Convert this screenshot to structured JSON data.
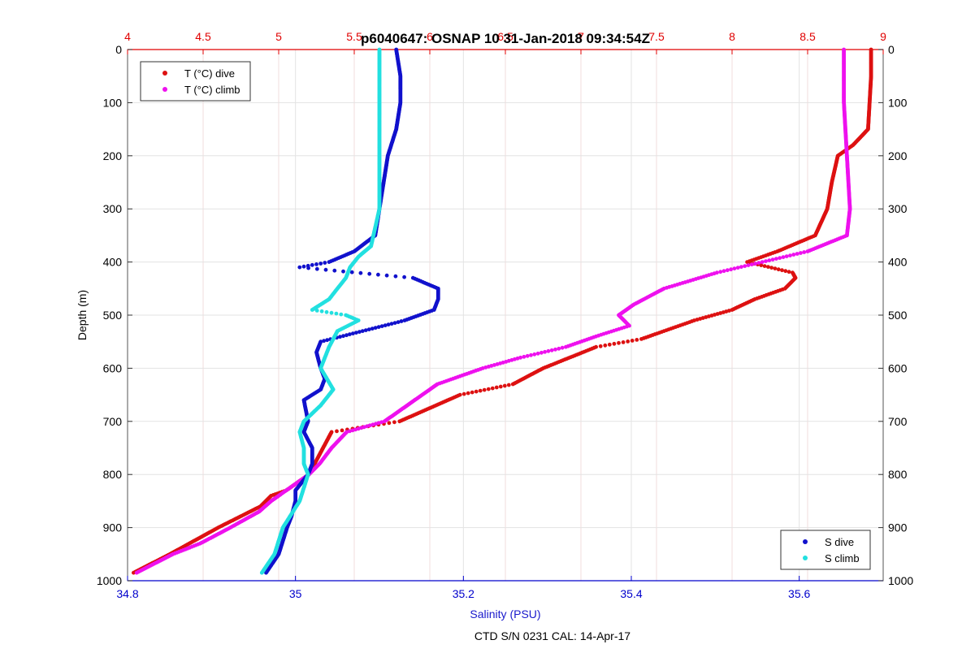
{
  "chart_data": {
    "type": "scatter",
    "title": "p6040647: OSNAP 10 31-Jan-2018 09:34:54Z",
    "xlabel": "Salinity (PSU)",
    "ylabel": "Depth (m)",
    "footer": "CTD S/N 0231  CAL: 14-Apr-17",
    "salinity_axis": {
      "range": [
        34.8,
        35.7
      ],
      "ticks": [
        "34.8",
        "35",
        "35.2",
        "35.4",
        "35.6"
      ],
      "color": "#0000cc"
    },
    "temperature_axis": {
      "range": [
        4,
        9
      ],
      "ticks": [
        "4",
        "4.5",
        "5",
        "5.5",
        "6",
        "6.5",
        "7",
        "7.5",
        "8",
        "8.5",
        "9"
      ],
      "color": "#e00000"
    },
    "depth_axis": {
      "range": [
        0,
        1000
      ],
      "reversed": true,
      "ticks": [
        "0",
        "100",
        "200",
        "300",
        "400",
        "500",
        "600",
        "700",
        "800",
        "900",
        "1000"
      ]
    },
    "grid": true,
    "legends": [
      {
        "placement": "top-left",
        "entries": [
          {
            "label": "T (°C) dive",
            "color": "#dd1111"
          },
          {
            "label": "T (°C) climb",
            "color": "#ee11ee"
          }
        ]
      },
      {
        "placement": "bottom-right",
        "entries": [
          {
            "label": "S dive",
            "color": "#1111cc"
          },
          {
            "label": "S climb",
            "color": "#22e0e0"
          }
        ]
      }
    ],
    "series": [
      {
        "name": "T (°C) dive",
        "axis": "temperature",
        "color": "#dd1111",
        "depth": [
          0,
          50,
          100,
          150,
          180,
          200,
          250,
          300,
          350,
          380,
          400,
          420,
          430,
          450,
          470,
          490,
          510,
          530,
          545,
          560,
          600,
          630,
          650,
          700,
          720,
          800,
          830,
          840,
          860,
          900,
          950,
          985
        ],
        "values": [
          8.92,
          8.92,
          8.91,
          8.9,
          8.8,
          8.7,
          8.66,
          8.63,
          8.55,
          8.3,
          8.1,
          8.4,
          8.42,
          8.35,
          8.15,
          8.0,
          7.75,
          7.55,
          7.4,
          7.1,
          6.75,
          6.55,
          6.2,
          5.8,
          5.35,
          5.2,
          5.05,
          4.95,
          4.88,
          4.6,
          4.28,
          4.04
        ]
      },
      {
        "name": "T (°C) climb",
        "axis": "temperature",
        "color": "#ee11ee",
        "depth": [
          0,
          100,
          150,
          200,
          250,
          300,
          350,
          380,
          400,
          420,
          450,
          480,
          500,
          520,
          540,
          560,
          580,
          600,
          630,
          650,
          700,
          720,
          750,
          780,
          800,
          830,
          850,
          870,
          900,
          930,
          950,
          985
        ],
        "values": [
          8.74,
          8.74,
          8.75,
          8.76,
          8.77,
          8.78,
          8.76,
          8.5,
          8.2,
          7.9,
          7.55,
          7.35,
          7.25,
          7.32,
          7.1,
          6.9,
          6.6,
          6.35,
          6.05,
          5.95,
          5.7,
          5.45,
          5.35,
          5.27,
          5.2,
          5.05,
          4.95,
          4.87,
          4.68,
          4.48,
          4.3,
          4.06
        ]
      },
      {
        "name": "S dive",
        "axis": "salinity",
        "color": "#1111cc",
        "depth": [
          0,
          50,
          100,
          150,
          200,
          250,
          300,
          350,
          380,
          400,
          410,
          430,
          450,
          470,
          490,
          510,
          530,
          550,
          570,
          600,
          620,
          640,
          660,
          700,
          720,
          750,
          780,
          800,
          830,
          850,
          880,
          900,
          950,
          985
        ],
        "values": [
          35.12,
          35.125,
          35.125,
          35.12,
          35.11,
          35.105,
          35.1,
          35.095,
          35.07,
          35.04,
          35.005,
          35.14,
          35.17,
          35.17,
          35.165,
          35.13,
          35.08,
          35.03,
          35.025,
          35.03,
          35.035,
          35.03,
          35.01,
          35.015,
          35.01,
          35.02,
          35.02,
          35.015,
          35.0,
          35.0,
          34.995,
          34.99,
          34.98,
          34.965
        ]
      },
      {
        "name": "S climb",
        "axis": "salinity",
        "color": "#22e0e0",
        "depth": [
          0,
          100,
          200,
          300,
          370,
          390,
          410,
          430,
          450,
          470,
          490,
          500,
          510,
          530,
          560,
          600,
          640,
          670,
          700,
          720,
          750,
          780,
          800,
          850,
          900,
          950,
          985
        ],
        "values": [
          35.1,
          35.1,
          35.1,
          35.1,
          35.09,
          35.075,
          35.065,
          35.06,
          35.05,
          35.04,
          35.02,
          35.06,
          35.075,
          35.05,
          35.04,
          35.03,
          35.045,
          35.03,
          35.01,
          35.005,
          35.01,
          35.01,
          35.015,
          35.005,
          34.985,
          34.975,
          34.96
        ]
      }
    ]
  }
}
